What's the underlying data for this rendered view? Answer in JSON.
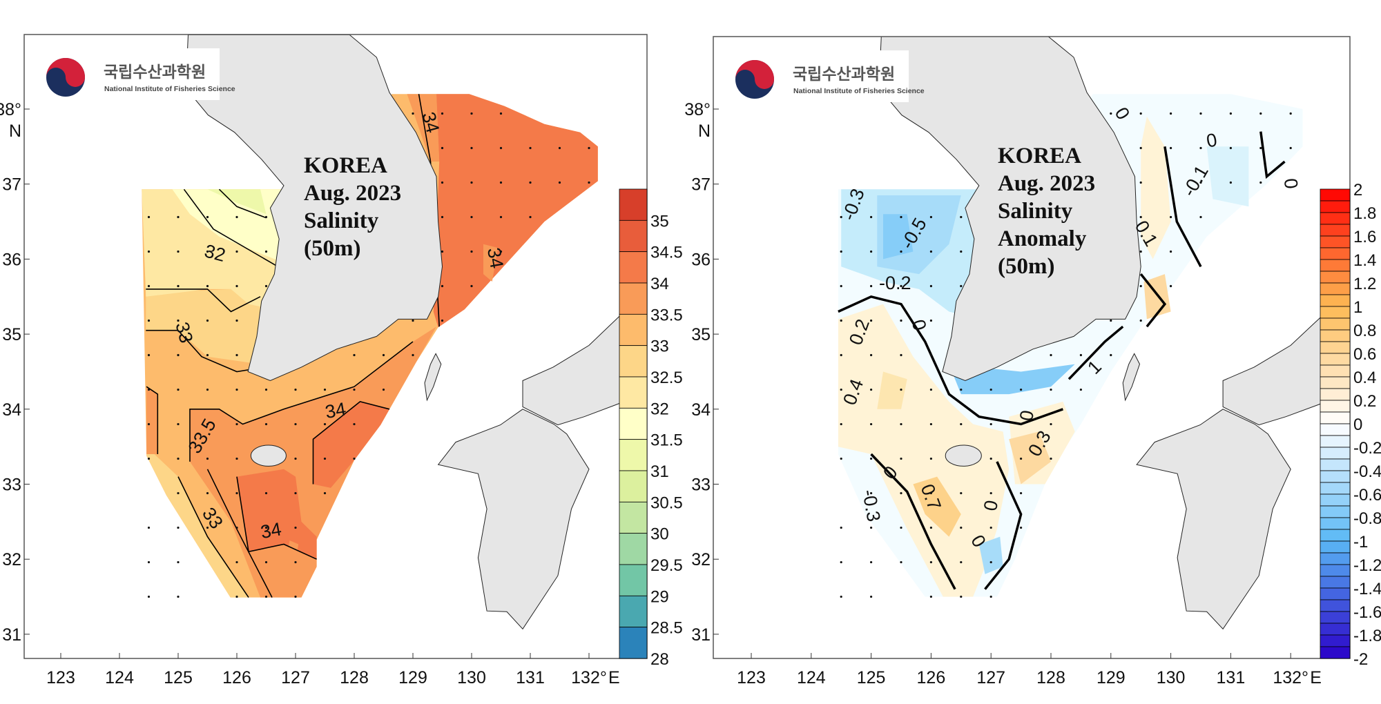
{
  "logo": {
    "korean": "국립수산과학원",
    "english": "National Institute of Fisheries Science"
  },
  "axes": {
    "lon_ticks": [
      "123",
      "124",
      "125",
      "126",
      "127",
      "128",
      "129",
      "130",
      "131",
      "132°"
    ],
    "lon_unit": "E",
    "lat_ticks": [
      "38°",
      "37",
      "36",
      "35",
      "34",
      "33",
      "32",
      "31"
    ],
    "lat_unit": "N"
  },
  "panels": [
    {
      "id": "salinity",
      "title_lines": [
        "KOREA",
        "Aug. 2023",
        "Salinity",
        "(50m)"
      ],
      "colorbar": {
        "labels": [
          "35",
          "34.5",
          "34",
          "33.5",
          "33",
          "32.5",
          "32",
          "31.5",
          "31",
          "30.5",
          "30",
          "29.5",
          "29",
          "28.5",
          "28"
        ],
        "colors": [
          "#d73f2a",
          "#e85d3b",
          "#f47a49",
          "#f99b58",
          "#fdbb6c",
          "#fdd688",
          "#fee8a3",
          "#ffffc8",
          "#eef8aa",
          "#dcf09e",
          "#c3e6a2",
          "#9fd8a4",
          "#72c6a6",
          "#4aa8b0",
          "#2b83ba"
        ]
      },
      "contour_labels": [
        "34",
        "32",
        "33",
        "33.5",
        "34",
        "33",
        "34",
        "34"
      ]
    },
    {
      "id": "anomaly",
      "title_lines": [
        "KOREA",
        "Aug. 2023",
        "Salinity",
        "Anomaly",
        "(50m)"
      ],
      "colorbar": {
        "labels": [
          "2",
          "1.8",
          "1.6",
          "1.4",
          "1.2",
          "1",
          "0.8",
          "0.6",
          "0.4",
          "0.2",
          "0",
          "-0.2",
          "-0.4",
          "-0.6",
          "-0.8",
          "-1",
          "-1.2",
          "-1.4",
          "-1.6",
          "-1.8",
          "-2"
        ],
        "top_color": "#ff0000",
        "mid_warm_color": "#fdbb55",
        "zero_color": "#ffffff",
        "mid_cool_color": "#5ab8f5",
        "bottom_color": "#2a00c8"
      },
      "contour_labels": [
        "-0.3",
        "-0.5",
        "-0.2",
        "0",
        "0.2",
        "0.4",
        "0",
        "0",
        "-0.1",
        "0",
        "0.1",
        "0",
        "0.3",
        "0",
        "-0.3",
        "0.7",
        "0",
        "0",
        "1"
      ]
    }
  ],
  "colors": {
    "land": "#e6e6e6",
    "frame": "#555555"
  }
}
